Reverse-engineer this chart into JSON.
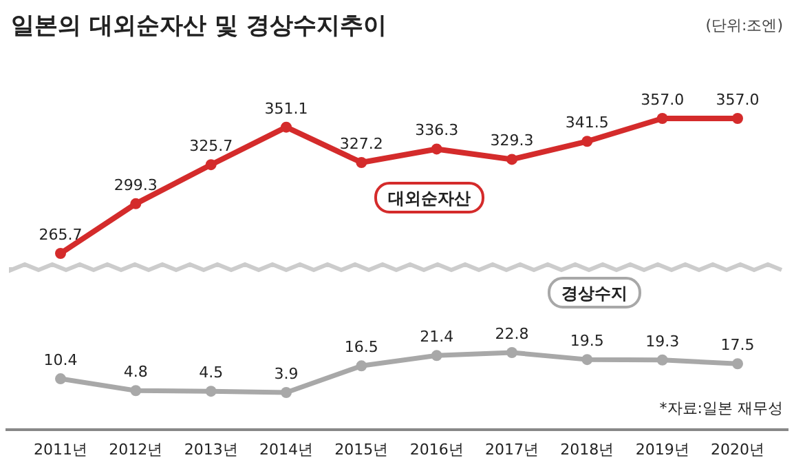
{
  "chart_data": [
    {
      "type": "line",
      "title": "일본의 대외순자산 및 경상수지추이",
      "subtitle": "(단위:조엔)",
      "categories": [
        null,
        null,
        null,
        null,
        null,
        null,
        null,
        null,
        null,
        null
      ],
      "marker": "circle",
      "line_style": "solid",
      "series": [
        {
          "name": "대외순자산",
          "color": "#d42b2b",
          "values": [
            265.7,
            299.3,
            325.7,
            351.1,
            327.2,
            336.3,
            329.3,
            341.5,
            357.0,
            357.0
          ],
          "value_labels": [
            "265.7",
            "299.3",
            "325.7",
            "351.1",
            "327.2",
            "336.3",
            "329.3",
            "341.5",
            "357.0",
            "357.0"
          ]
        }
      ]
    },
    {
      "type": "line",
      "categories": [
        "2011년",
        "2012년",
        "2013년",
        "2014년",
        "2015년",
        "2016년",
        "2017년",
        "2018년",
        "2019년",
        "2020년"
      ],
      "marker": "circle",
      "line_style": "solid",
      "series": [
        {
          "name": "경상수지",
          "color": "#a8a8a8",
          "values": [
            10.4,
            4.8,
            4.5,
            3.9,
            16.5,
            21.4,
            22.8,
            19.5,
            19.3,
            17.5
          ],
          "value_labels": [
            "10.4",
            "4.8",
            "4.5",
            "3.9",
            "16.5",
            "21.4",
            "22.8",
            "19.5",
            "19.3",
            "17.5"
          ]
        }
      ],
      "annotations": [
        "*자료:일본 재무성"
      ]
    }
  ]
}
